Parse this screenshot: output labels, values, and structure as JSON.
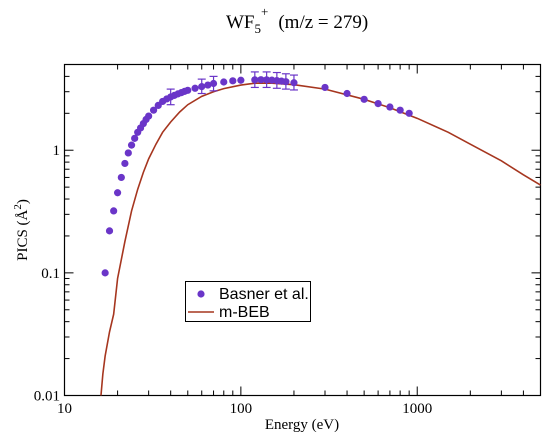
{
  "chart_data": {
    "type": "scatter",
    "title": {
      "main": "WF",
      "sub": "5",
      "sup": "+",
      "rest": "(m/z = 279)"
    },
    "xlabel": "Energy (eV)",
    "ylabel": {
      "main": "PICS (Å",
      "sup": "2",
      "close": ")"
    },
    "x_scale": "log",
    "y_scale": "log",
    "xlim": [
      10,
      5000
    ],
    "ylim": [
      0.01,
      5
    ],
    "x_ticks": [
      {
        "value": 10,
        "label": "10"
      },
      {
        "value": 100,
        "label": "100"
      },
      {
        "value": 1000,
        "label": "1000"
      }
    ],
    "y_ticks": [
      {
        "value": 0.01,
        "label": "0.01"
      },
      {
        "value": 0.1,
        "label": "0.1"
      },
      {
        "value": 1,
        "label": "1"
      }
    ],
    "grid": false,
    "legend": {
      "placement": "center-left"
    },
    "series": [
      {
        "name": "Basner et al.",
        "kind": "points",
        "color": "#6a35c8",
        "points": [
          [
            17,
            0.1
          ],
          [
            18,
            0.22
          ],
          [
            19,
            0.32
          ],
          [
            20,
            0.45
          ],
          [
            21,
            0.6
          ],
          [
            22,
            0.78
          ],
          [
            23,
            0.95
          ],
          [
            24,
            1.1
          ],
          [
            25,
            1.25
          ],
          [
            26,
            1.4
          ],
          [
            27,
            1.52
          ],
          [
            28,
            1.65
          ],
          [
            29,
            1.78
          ],
          [
            30,
            1.9
          ],
          [
            32,
            2.12
          ],
          [
            34,
            2.32
          ],
          [
            36,
            2.5
          ],
          [
            38,
            2.62
          ],
          [
            40,
            2.72
          ],
          [
            42,
            2.8
          ],
          [
            44,
            2.88
          ],
          [
            46,
            2.95
          ],
          [
            48,
            3.02
          ],
          [
            50,
            3.08
          ],
          [
            55,
            3.2
          ],
          [
            60,
            3.3
          ],
          [
            65,
            3.4
          ],
          [
            70,
            3.5
          ],
          [
            80,
            3.6
          ],
          [
            90,
            3.68
          ],
          [
            100,
            3.72
          ],
          [
            120,
            3.75
          ],
          [
            130,
            3.76
          ],
          [
            140,
            3.75
          ],
          [
            150,
            3.73
          ],
          [
            160,
            3.7
          ],
          [
            170,
            3.66
          ],
          [
            180,
            3.62
          ],
          [
            200,
            3.55
          ],
          [
            300,
            3.25
          ],
          [
            400,
            2.9
          ],
          [
            500,
            2.6
          ],
          [
            600,
            2.4
          ],
          [
            700,
            2.25
          ],
          [
            800,
            2.12
          ],
          [
            900,
            2.0
          ]
        ],
        "error_bars": [
          {
            "x": 40,
            "y": 2.72,
            "low": 2.35,
            "high": 3.15
          },
          {
            "x": 60,
            "y": 3.3,
            "low": 2.9,
            "high": 3.8
          },
          {
            "x": 70,
            "y": 3.5,
            "low": 3.05,
            "high": 4.0
          },
          {
            "x": 120,
            "y": 3.75,
            "low": 3.25,
            "high": 4.35
          },
          {
            "x": 140,
            "y": 3.75,
            "low": 3.25,
            "high": 4.35
          },
          {
            "x": 160,
            "y": 3.7,
            "low": 3.2,
            "high": 4.3
          },
          {
            "x": 180,
            "y": 3.62,
            "low": 3.15,
            "high": 4.2
          },
          {
            "x": 200,
            "y": 3.55,
            "low": 3.1,
            "high": 4.1
          }
        ]
      },
      {
        "name": "m-BEB",
        "kind": "line",
        "color": "#a6361f",
        "points": [
          [
            16.1,
            0.01
          ],
          [
            16.5,
            0.015
          ],
          [
            17,
            0.021
          ],
          [
            18,
            0.033
          ],
          [
            19,
            0.046
          ],
          [
            20,
            0.09
          ],
          [
            22,
            0.18
          ],
          [
            24,
            0.32
          ],
          [
            26,
            0.48
          ],
          [
            28,
            0.66
          ],
          [
            30,
            0.85
          ],
          [
            33,
            1.12
          ],
          [
            36,
            1.4
          ],
          [
            40,
            1.7
          ],
          [
            45,
            2.05
          ],
          [
            50,
            2.35
          ],
          [
            60,
            2.75
          ],
          [
            70,
            3.0
          ],
          [
            80,
            3.18
          ],
          [
            100,
            3.4
          ],
          [
            120,
            3.52
          ],
          [
            150,
            3.52
          ],
          [
            200,
            3.42
          ],
          [
            300,
            3.15
          ],
          [
            500,
            2.6
          ],
          [
            700,
            2.22
          ],
          [
            1000,
            1.82
          ],
          [
            1500,
            1.4
          ],
          [
            2000,
            1.12
          ],
          [
            3000,
            0.82
          ],
          [
            4000,
            0.63
          ],
          [
            5000,
            0.52
          ]
        ]
      }
    ]
  }
}
